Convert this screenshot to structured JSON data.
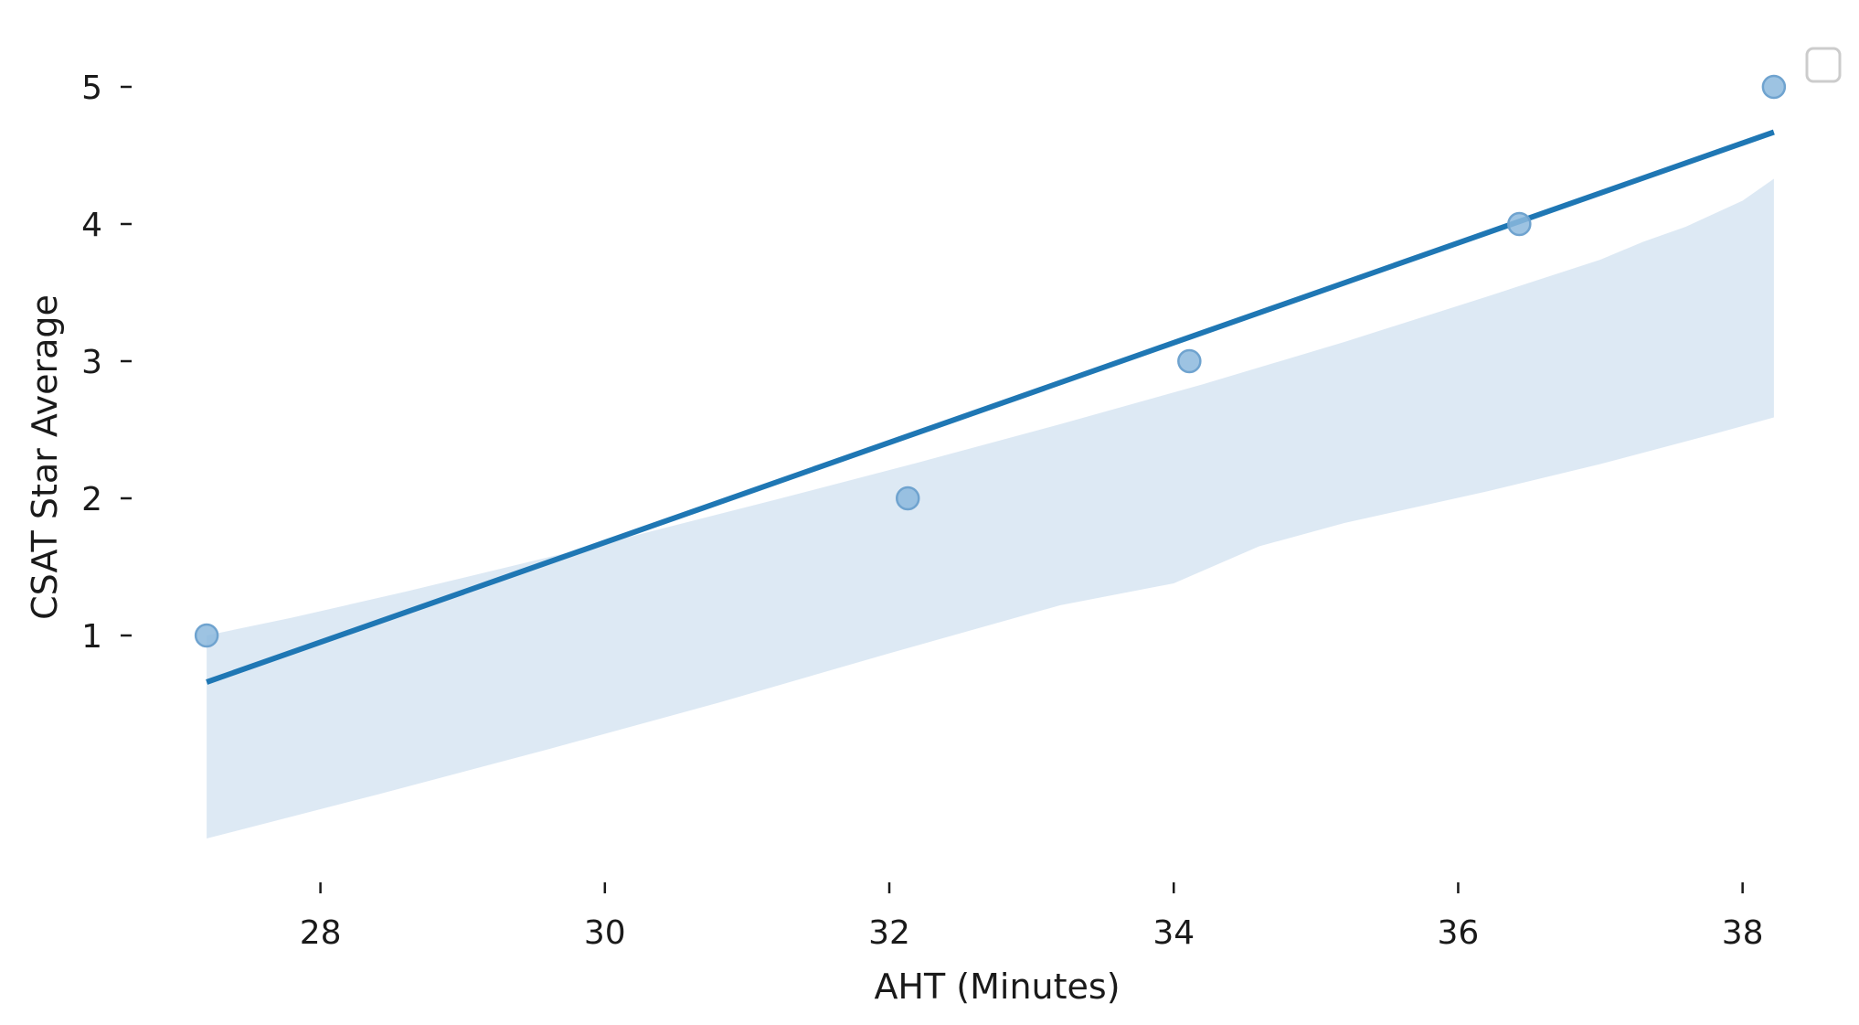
{
  "chart_data": {
    "type": "scatter",
    "title": "",
    "xlabel": "AHT (Minutes)",
    "ylabel": "CSAT Star Average",
    "xlim": [
      27.0,
      38.6
    ],
    "ylim": [
      -0.7,
      5.3
    ],
    "xticks": [
      28,
      30,
      32,
      34,
      36,
      38
    ],
    "yticks": [
      1,
      2,
      3,
      4,
      5
    ],
    "grid": false,
    "legend": "top-right (empty)",
    "points": [
      {
        "x": 27.2,
        "y": 1
      },
      {
        "x": 32.13,
        "y": 2
      },
      {
        "x": 34.11,
        "y": 3
      },
      {
        "x": 36.43,
        "y": 4
      },
      {
        "x": 38.22,
        "y": 5
      }
    ],
    "regression": {
      "x": [
        27.2,
        38.22
      ],
      "y": [
        0.66,
        4.67
      ]
    },
    "confidence_band": {
      "upper": [
        [
          27.2,
          1.0
        ],
        [
          27.8,
          1.13
        ],
        [
          28.6,
          1.32
        ],
        [
          29.8,
          1.62
        ],
        [
          31.2,
          1.99
        ],
        [
          32.2,
          2.26
        ],
        [
          33.2,
          2.54
        ],
        [
          34.2,
          2.83
        ],
        [
          35.2,
          3.14
        ],
        [
          36.2,
          3.47
        ],
        [
          37.0,
          3.74
        ],
        [
          37.3,
          3.87
        ],
        [
          37.6,
          3.98
        ],
        [
          38.0,
          4.17
        ],
        [
          38.22,
          4.33
        ]
      ],
      "lower": [
        [
          27.2,
          -0.48
        ],
        [
          28.4,
          -0.16
        ],
        [
          29.6,
          0.17
        ],
        [
          30.8,
          0.51
        ],
        [
          32.0,
          0.87
        ],
        [
          33.2,
          1.22
        ],
        [
          34.0,
          1.38
        ],
        [
          34.6,
          1.65
        ],
        [
          35.2,
          1.82
        ],
        [
          36.2,
          2.05
        ],
        [
          37.0,
          2.25
        ],
        [
          37.8,
          2.47
        ],
        [
          38.22,
          2.59
        ]
      ]
    },
    "colors": {
      "line": "#1f77b4",
      "points": "#8cb9dd",
      "points_edge": "#6fa3cf",
      "band": "#dde9f4",
      "text": "#1a1a1a"
    }
  }
}
